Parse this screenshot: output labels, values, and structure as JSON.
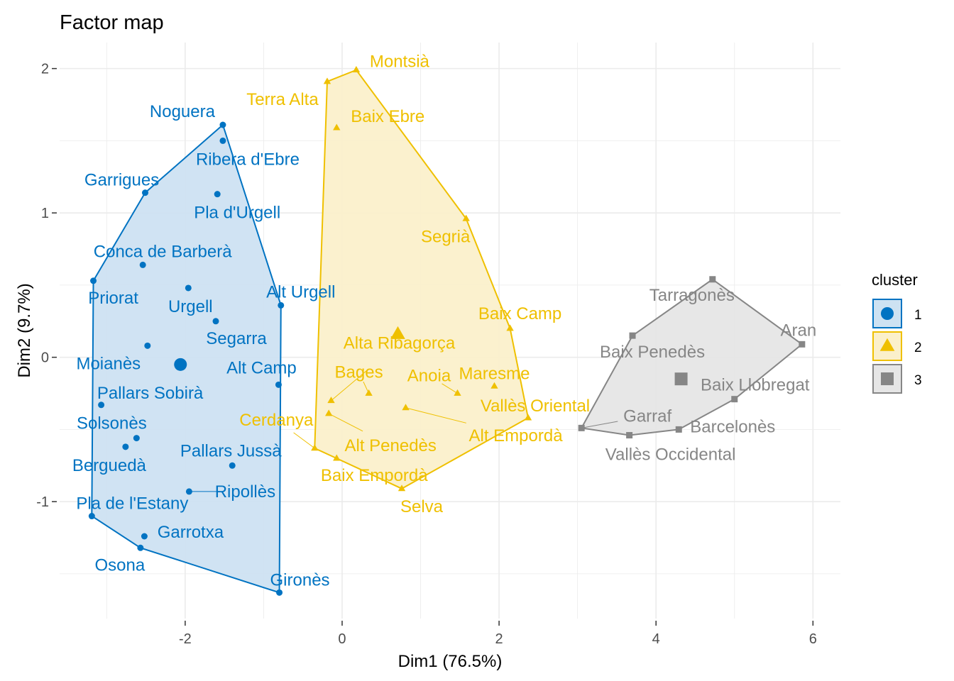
{
  "chart_data": {
    "type": "scatter",
    "title": "Factor map",
    "xlabel": "Dim1 (76.5%)",
    "ylabel": "Dim2 (9.7%)",
    "xlim": [
      -3.6,
      6.35
    ],
    "ylim": [
      -1.81,
      2.18
    ],
    "xticks": [
      -2,
      0,
      2,
      4,
      6
    ],
    "yticks": [
      -1,
      0,
      1,
      2
    ],
    "grid": true,
    "legend": {
      "title": "cluster",
      "position": "right",
      "entries": [
        "1",
        "2",
        "3"
      ]
    },
    "clusters": [
      {
        "name": "1",
        "color": "#0073C2",
        "fill": "#CDE2F2",
        "shape": "circle",
        "centroid": [
          -2.06,
          -0.05
        ],
        "hull": [
          "Noguera",
          "Alt Urgell",
          "Gironès",
          "Osona",
          "Pla de l'Estany",
          "Priorat",
          "Garrigues"
        ],
        "points": [
          {
            "label": "Noguera",
            "x": -1.52,
            "y": 1.61
          },
          {
            "label": "Ribera d'Ebre",
            "x": -1.52,
            "y": 1.5
          },
          {
            "label": "Garrigues",
            "x": -2.51,
            "y": 1.14
          },
          {
            "label": "Pla d'Urgell",
            "x": -1.59,
            "y": 1.13
          },
          {
            "label": "Conca de Barberà",
            "x": -2.54,
            "y": 0.64
          },
          {
            "label": "Priorat",
            "x": -3.17,
            "y": 0.53
          },
          {
            "label": "Urgell",
            "x": -1.96,
            "y": 0.48
          },
          {
            "label": "Alt Urgell",
            "x": -0.78,
            "y": 0.36
          },
          {
            "label": "Segarra",
            "x": -1.61,
            "y": 0.25
          },
          {
            "label": "Moianès",
            "x": -2.48,
            "y": 0.08
          },
          {
            "label": "Alt Camp",
            "x": -0.81,
            "y": -0.19
          },
          {
            "label": "Pallars Sobirà",
            "x": -3.07,
            "y": -0.33
          },
          {
            "label": "Solsonès",
            "x": -2.62,
            "y": -0.56
          },
          {
            "label": "Berguedà",
            "x": -2.76,
            "y": -0.62
          },
          {
            "label": "Pallars Jussà",
            "x": -1.4,
            "y": -0.75
          },
          {
            "label": "Ripollès",
            "x": -1.95,
            "y": -0.93
          },
          {
            "label": "Pla de l'Estany",
            "x": -3.19,
            "y": -1.1
          },
          {
            "label": "Garrotxa",
            "x": -2.52,
            "y": -1.24
          },
          {
            "label": "Osona",
            "x": -2.57,
            "y": -1.32
          },
          {
            "label": "Gironès",
            "x": -0.8,
            "y": -1.63
          }
        ]
      },
      {
        "name": "2",
        "color": "#EFC000",
        "fill": "#FBF0CB",
        "shape": "triangle",
        "centroid": [
          0.71,
          0.16
        ],
        "hull": [
          "Montsià",
          "Segrià",
          "Baix Camp",
          "Vallès Oriental",
          "Selva",
          "Baix Empordà",
          "Cerdanya",
          "Terra Alta"
        ],
        "points": [
          {
            "label": "Montsià",
            "x": 0.18,
            "y": 1.99
          },
          {
            "label": "Terra Alta",
            "x": -0.19,
            "y": 1.91
          },
          {
            "label": "Baix Ebre",
            "x": -0.07,
            "y": 1.59
          },
          {
            "label": "Segrià",
            "x": 1.58,
            "y": 0.96
          },
          {
            "label": "Baix Camp",
            "x": 2.14,
            "y": 0.2
          },
          {
            "label": "Maresme",
            "x": 1.94,
            "y": -0.2
          },
          {
            "label": "Vallès Oriental",
            "x": 2.37,
            "y": -0.42
          },
          {
            "label": "Anoia",
            "x": 1.47,
            "y": -0.25
          },
          {
            "label": "Bages",
            "x": 0.34,
            "y": -0.25
          },
          {
            "label": "Alta Ribagorça",
            "x": -0.14,
            "y": -0.3
          },
          {
            "label": "Alt Empordà",
            "x": 0.81,
            "y": -0.35
          },
          {
            "label": "Alt Penedès",
            "x": -0.17,
            "y": -0.39
          },
          {
            "label": "Cerdanya",
            "x": -0.35,
            "y": -0.63
          },
          {
            "label": "Baix Empordà",
            "x": -0.07,
            "y": -0.7
          },
          {
            "label": "Selva",
            "x": 0.76,
            "y": -0.91
          }
        ]
      },
      {
        "name": "3",
        "color": "#868686",
        "fill": "#E6E6E6",
        "shape": "square",
        "centroid": [
          4.32,
          -0.15
        ],
        "hull": [
          "Tarragonès",
          "Aran",
          "Baix Llobregat",
          "Barcelonès",
          "Vallès Occidental",
          "Garraf",
          "Baix Penedès"
        ],
        "points": [
          {
            "label": "Tarragonès",
            "x": 4.72,
            "y": 0.54
          },
          {
            "label": "Baix Penedès",
            "x": 3.7,
            "y": 0.15
          },
          {
            "label": "Aran",
            "x": 5.86,
            "y": 0.09
          },
          {
            "label": "Baix Llobregat",
            "x": 5.0,
            "y": -0.29
          },
          {
            "label": "Garraf",
            "x": 3.05,
            "y": -0.49
          },
          {
            "label": "Vallès Occidental",
            "x": 3.66,
            "y": -0.54
          },
          {
            "label": "Barcelonès",
            "x": 4.29,
            "y": -0.5
          }
        ]
      }
    ]
  }
}
